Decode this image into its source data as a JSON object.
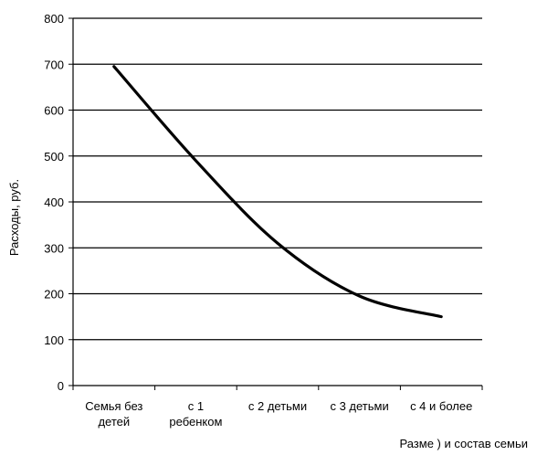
{
  "chart_data": {
    "type": "line",
    "categories": [
      [
        "Семья без",
        "детей"
      ],
      [
        "с 1",
        "ребенком"
      ],
      [
        "с 2 детьми"
      ],
      [
        "с 3 детьми"
      ],
      [
        "с 4 и более"
      ]
    ],
    "series": [
      {
        "values": [
          695,
          490,
          310,
          195,
          150
        ]
      }
    ],
    "ylim": [
      0,
      800
    ],
    "yticks": [
      0,
      100,
      200,
      300,
      400,
      500,
      600,
      700,
      800
    ],
    "ylabel": "Расходы, руб.",
    "xlabel": "Разме ) и состав семьи",
    "grid": true,
    "legend": "none",
    "line_color": "#000000"
  }
}
